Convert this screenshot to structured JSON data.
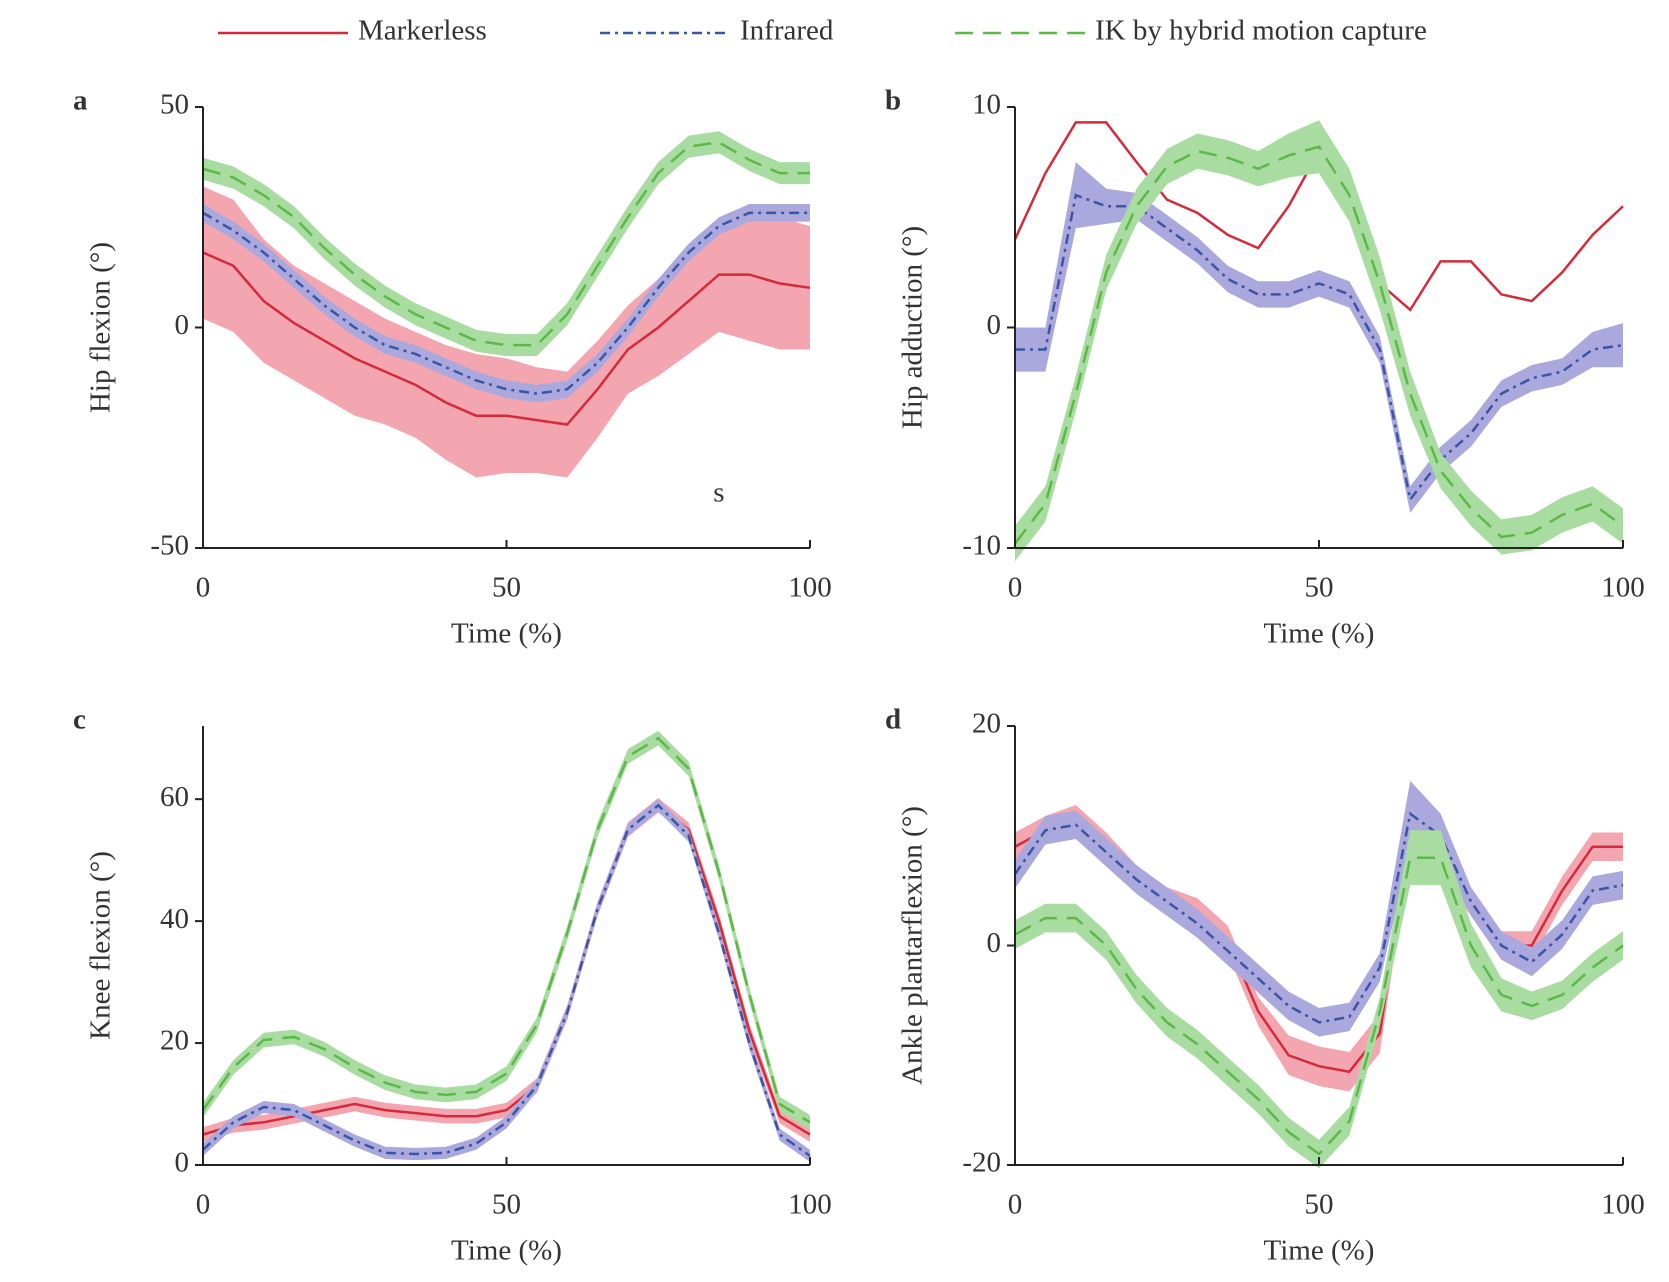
{
  "chart_data": [
    {
      "type": "line",
      "label": "a",
      "xlabel": "Time (%)",
      "ylabel": "Hip flexion (°)",
      "x": [
        0,
        5,
        10,
        15,
        20,
        25,
        30,
        35,
        40,
        45,
        50,
        55,
        60,
        65,
        70,
        75,
        80,
        85,
        90,
        95,
        100
      ],
      "xlim": [
        0,
        100
      ],
      "ylim": [
        -50,
        50
      ],
      "xticks": [
        0,
        50,
        100
      ],
      "yticks": [
        -50,
        0,
        50
      ],
      "annotations": [
        {
          "text": "s",
          "x": 85,
          "y": -38
        }
      ],
      "series": [
        {
          "name": "Markerless",
          "color": "#d42a3a",
          "band_color": "#f4a6b0",
          "dash": "none",
          "values": [
            17,
            14,
            6,
            1,
            -3,
            -7,
            -10,
            -13,
            -17,
            -20,
            -20,
            -21,
            -22,
            -14,
            -5,
            0,
            6,
            12,
            12,
            10,
            9
          ],
          "error": [
            15,
            15,
            14,
            13,
            13,
            13,
            12,
            12,
            13,
            14,
            13,
            12,
            12,
            11,
            10,
            11,
            12,
            13,
            15,
            15,
            14
          ]
        },
        {
          "name": "Infrared",
          "color": "#3a55a6",
          "band_color": "#aaa8dd",
          "dash": "10,5,3,5",
          "values": [
            26,
            22,
            17,
            11,
            5,
            0,
            -4,
            -6,
            -9,
            -12,
            -14,
            -15,
            -14,
            -8,
            0,
            9,
            17,
            23,
            26,
            26,
            26
          ],
          "error": [
            2,
            2,
            2,
            2,
            2,
            2,
            2,
            2,
            2,
            2,
            2,
            2,
            2,
            2,
            2,
            2,
            2,
            2,
            2,
            2,
            2
          ]
        },
        {
          "name": "IK by hybrid motion capture",
          "color": "#5cb947",
          "band_color": "#a9dca1",
          "dash": "18,10",
          "values": [
            36,
            34,
            30,
            25,
            18,
            12,
            7,
            3,
            0,
            -3,
            -4,
            -4,
            3,
            14,
            25,
            35,
            41,
            42,
            38,
            35,
            35
          ],
          "error": [
            2.5,
            2.5,
            2.5,
            2.5,
            2.5,
            2.5,
            2.5,
            2.5,
            2.5,
            2.5,
            2.5,
            2.5,
            2.5,
            2.5,
            2.5,
            2.5,
            2.5,
            2.5,
            2.5,
            2.5,
            2.5
          ]
        }
      ]
    },
    {
      "type": "line",
      "label": "b",
      "xlabel": "Time (%)",
      "ylabel": "Hip adduction (°)",
      "x": [
        0,
        5,
        10,
        15,
        20,
        25,
        30,
        35,
        40,
        45,
        50,
        55,
        60,
        65,
        70,
        75,
        80,
        85,
        90,
        95,
        100
      ],
      "xlim": [
        0,
        100
      ],
      "ylim": [
        -10,
        10
      ],
      "xticks": [
        0,
        50,
        100
      ],
      "yticks": [
        -10,
        0,
        10
      ],
      "series": [
        {
          "color": "#d42a3a",
          "dash": "none",
          "values": [
            4,
            7,
            9.3,
            9.3,
            7.5,
            5.8,
            5.2,
            4.2,
            3.6,
            5.5,
            8,
            6,
            2,
            0.8,
            3,
            3,
            1.5,
            1.2,
            2.5,
            4.2,
            5.5
          ]
        },
        {
          "color": "#3a55a6",
          "band_color": "#aaa8dd",
          "dash": "10,5,3,5",
          "values": [
            -1,
            -1,
            6,
            5.5,
            5.5,
            4.5,
            3.5,
            2.2,
            1.5,
            1.5,
            2,
            1.5,
            -1,
            -7.8,
            -6,
            -4.8,
            -3,
            -2.3,
            -2,
            -1,
            -0.8
          ],
          "error": [
            1,
            1,
            1.5,
            0.8,
            0.6,
            0.6,
            0.6,
            0.6,
            0.6,
            0.6,
            0.6,
            0.6,
            0.6,
            0.6,
            0.6,
            0.6,
            0.6,
            0.6,
            0.6,
            0.8,
            1
          ]
        },
        {
          "color": "#5cb947",
          "band_color": "#a9dca1",
          "dash": "18,10",
          "values": [
            -9.8,
            -8,
            -3,
            2.5,
            5.5,
            7.3,
            8,
            7.7,
            7.2,
            7.8,
            8.2,
            6,
            2,
            -3,
            -6.5,
            -8.2,
            -9.5,
            -9.3,
            -8.5,
            -8,
            -9
          ],
          "error": [
            0.8,
            0.8,
            0.8,
            0.8,
            0.8,
            0.8,
            0.8,
            0.8,
            0.8,
            1,
            1.2,
            1.2,
            1.2,
            1,
            0.8,
            0.8,
            0.8,
            0.8,
            0.8,
            0.8,
            0.8
          ]
        }
      ]
    },
    {
      "type": "line",
      "label": "c",
      "xlabel": "Time (%)",
      "ylabel": "Knee flexion (°)",
      "x": [
        0,
        5,
        10,
        15,
        20,
        25,
        30,
        35,
        40,
        45,
        50,
        55,
        60,
        65,
        70,
        75,
        80,
        85,
        90,
        95,
        100
      ],
      "xlim": [
        0,
        100
      ],
      "ylim": [
        0,
        72
      ],
      "xticks": [
        0,
        50,
        100
      ],
      "yticks": [
        0,
        20,
        40,
        60
      ],
      "series": [
        {
          "color": "#d42a3a",
          "band_color": "#f4a6b0",
          "dash": "none",
          "values": [
            5,
            6.5,
            7,
            8,
            9,
            10,
            9,
            8.5,
            8,
            8,
            9,
            13,
            25,
            42,
            55,
            59,
            55,
            40,
            22,
            8,
            5
          ],
          "error": [
            1.2,
            1.2,
            1.2,
            1.2,
            1.2,
            1.2,
            1.2,
            1.2,
            1.2,
            1.2,
            1.2,
            1.2,
            1.2,
            1.2,
            1.2,
            1.2,
            1.2,
            1.2,
            1.2,
            1.2,
            1.2
          ]
        },
        {
          "color": "#3a55a6",
          "band_color": "#aaa8dd",
          "dash": "10,5,3,5",
          "values": [
            2.5,
            7,
            9.5,
            9,
            6.5,
            4,
            2,
            1.8,
            2,
            3.5,
            7,
            13,
            25,
            42,
            55,
            59,
            54,
            38,
            20,
            5,
            1.5
          ],
          "error": [
            1,
            1,
            1,
            1,
            1,
            1,
            1,
            1,
            1,
            1,
            1,
            1,
            1,
            1,
            1,
            1,
            1,
            1,
            1,
            1,
            1
          ]
        },
        {
          "color": "#5cb947",
          "band_color": "#a9dca1",
          "dash": "18,10",
          "values": [
            9,
            16,
            20.5,
            21,
            19,
            16,
            13.5,
            12,
            11.5,
            12,
            15,
            23,
            38,
            55,
            67,
            70,
            65,
            48,
            28,
            10,
            7
          ],
          "error": [
            1.2,
            1.2,
            1.2,
            1.2,
            1.2,
            1.2,
            1.2,
            1.2,
            1.2,
            1.2,
            1.2,
            1.2,
            1.2,
            1.2,
            1.2,
            1.2,
            1.2,
            1.2,
            1.2,
            1.2,
            1.2
          ]
        }
      ]
    },
    {
      "type": "line",
      "label": "d",
      "xlabel": "Time (%)",
      "ylabel": "Ankle plantarflexion (°)",
      "x": [
        0,
        5,
        10,
        15,
        20,
        25,
        30,
        35,
        40,
        45,
        50,
        55,
        60,
        65,
        70,
        75,
        80,
        85,
        90,
        95,
        100
      ],
      "xlim": [
        0,
        100
      ],
      "ylim": [
        -20,
        20
      ],
      "xticks": [
        0,
        50,
        100
      ],
      "yticks": [
        -20,
        0,
        20
      ],
      "series": [
        {
          "color": "#d42a3a",
          "band_color": "#f4a6b0",
          "dash": "none",
          "values": [
            9,
            10.5,
            11.5,
            9,
            6,
            4,
            3,
            0.5,
            -6,
            -10,
            -11,
            -11.5,
            -8,
            10,
            8,
            4,
            0,
            0,
            5,
            9,
            9
          ],
          "error": [
            1.3,
            1.3,
            1.3,
            1.3,
            1.3,
            1.3,
            1.3,
            1.3,
            1.3,
            1.8,
            1.8,
            1.8,
            1.8,
            1.3,
            1.3,
            1.3,
            1.3,
            1.3,
            1.3,
            1.3,
            1.3
          ]
        },
        {
          "color": "#3a55a6",
          "band_color": "#aaa8dd",
          "dash": "10,5,3,5",
          "values": [
            6.5,
            10.5,
            11,
            8.5,
            6,
            4,
            2,
            -0.5,
            -3,
            -5.5,
            -7,
            -6.5,
            -2,
            12,
            10,
            4,
            0,
            -1.5,
            1,
            5,
            5.5
          ],
          "error": [
            1.3,
            1.3,
            1.3,
            1.3,
            1.3,
            1.3,
            1.3,
            1.3,
            1.3,
            1.3,
            1.3,
            1.3,
            1.3,
            3,
            2,
            1.3,
            1.3,
            1.3,
            1.3,
            1.3,
            1.3
          ]
        },
        {
          "color": "#5cb947",
          "band_color": "#a9dca1",
          "dash": "18,10",
          "values": [
            1,
            2.5,
            2.5,
            0,
            -4,
            -7,
            -9,
            -11.5,
            -14,
            -17,
            -19,
            -16,
            -6,
            8,
            8,
            0,
            -4.5,
            -5.5,
            -4.5,
            -2,
            0
          ],
          "error": [
            1.3,
            1.3,
            1.3,
            1.3,
            1.3,
            1.3,
            1.3,
            1.3,
            1.3,
            1.3,
            1.3,
            1.3,
            1.3,
            2.5,
            2.5,
            2,
            1.5,
            1.3,
            1.3,
            1.3,
            1.3
          ]
        }
      ]
    }
  ]
}
